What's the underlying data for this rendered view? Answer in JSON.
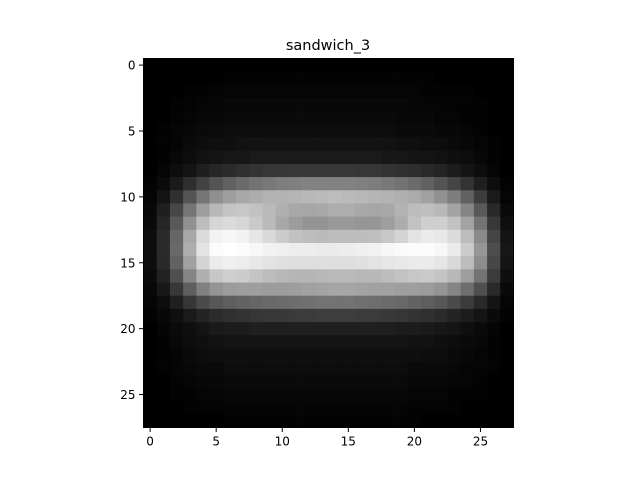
{
  "chart_data": {
    "type": "heatmap",
    "title": "sandwich_3",
    "xlabel": "",
    "ylabel": "",
    "colormap": "gray",
    "value_range": [
      0,
      1
    ],
    "rows": 28,
    "cols": 28,
    "xlim": [
      -0.5,
      27.5
    ],
    "ylim": [
      27.5,
      -0.5
    ],
    "x_ticks": [
      0,
      5,
      10,
      15,
      20,
      25
    ],
    "y_ticks": [
      0,
      5,
      10,
      15,
      20,
      25
    ],
    "x_tick_labels": [
      "0",
      "5",
      "10",
      "15",
      "20",
      "25"
    ],
    "y_tick_labels": [
      "0",
      "5",
      "10",
      "15",
      "20",
      "25"
    ],
    "grid": false,
    "values": [
      [
        0.0,
        0.0,
        0.0,
        0.0,
        0.0,
        0.0,
        0.0,
        0.0,
        0.0,
        0.0,
        0.0,
        0.0,
        0.0,
        0.0,
        0.0,
        0.0,
        0.0,
        0.0,
        0.0,
        0.0,
        0.0,
        0.0,
        0.0,
        0.0,
        0.0,
        0.0,
        0.0,
        0.0
      ],
      [
        0.0,
        0.0,
        0.0,
        0.0,
        0.0,
        0.0,
        0.01,
        0.01,
        0.01,
        0.01,
        0.01,
        0.01,
        0.01,
        0.01,
        0.01,
        0.01,
        0.01,
        0.01,
        0.01,
        0.01,
        0.01,
        0.01,
        0.0,
        0.0,
        0.0,
        0.0,
        0.0,
        0.0
      ],
      [
        0.0,
        0.0,
        0.0,
        0.01,
        0.01,
        0.01,
        0.02,
        0.02,
        0.02,
        0.02,
        0.02,
        0.02,
        0.02,
        0.02,
        0.02,
        0.02,
        0.02,
        0.02,
        0.02,
        0.02,
        0.02,
        0.01,
        0.01,
        0.01,
        0.01,
        0.0,
        0.0,
        0.0
      ],
      [
        0.0,
        0.0,
        0.01,
        0.01,
        0.02,
        0.02,
        0.03,
        0.03,
        0.03,
        0.03,
        0.03,
        0.03,
        0.03,
        0.03,
        0.03,
        0.03,
        0.03,
        0.03,
        0.03,
        0.03,
        0.02,
        0.02,
        0.02,
        0.01,
        0.01,
        0.01,
        0.0,
        0.0
      ],
      [
        0.0,
        0.0,
        0.01,
        0.02,
        0.03,
        0.03,
        0.04,
        0.04,
        0.04,
        0.04,
        0.04,
        0.04,
        0.04,
        0.04,
        0.04,
        0.04,
        0.04,
        0.04,
        0.04,
        0.03,
        0.03,
        0.03,
        0.02,
        0.02,
        0.01,
        0.01,
        0.0,
        0.0
      ],
      [
        0.0,
        0.01,
        0.02,
        0.03,
        0.04,
        0.04,
        0.05,
        0.05,
        0.05,
        0.05,
        0.05,
        0.05,
        0.05,
        0.05,
        0.05,
        0.05,
        0.05,
        0.05,
        0.05,
        0.04,
        0.04,
        0.04,
        0.03,
        0.03,
        0.02,
        0.01,
        0.0,
        0.0
      ],
      [
        0.0,
        0.01,
        0.02,
        0.04,
        0.05,
        0.06,
        0.06,
        0.07,
        0.07,
        0.07,
        0.07,
        0.07,
        0.07,
        0.07,
        0.07,
        0.07,
        0.07,
        0.07,
        0.07,
        0.06,
        0.06,
        0.05,
        0.05,
        0.04,
        0.03,
        0.02,
        0.01,
        0.0
      ],
      [
        0.0,
        0.01,
        0.03,
        0.05,
        0.07,
        0.08,
        0.09,
        0.09,
        0.1,
        0.1,
        0.1,
        0.1,
        0.1,
        0.1,
        0.1,
        0.1,
        0.1,
        0.1,
        0.09,
        0.09,
        0.08,
        0.08,
        0.07,
        0.06,
        0.05,
        0.03,
        0.01,
        0.0
      ],
      [
        0.0,
        0.02,
        0.05,
        0.08,
        0.12,
        0.15,
        0.17,
        0.19,
        0.2,
        0.21,
        0.21,
        0.22,
        0.22,
        0.22,
        0.22,
        0.22,
        0.21,
        0.21,
        0.2,
        0.19,
        0.18,
        0.16,
        0.14,
        0.11,
        0.08,
        0.05,
        0.02,
        0.0
      ],
      [
        0.01,
        0.04,
        0.1,
        0.18,
        0.26,
        0.33,
        0.38,
        0.42,
        0.45,
        0.47,
        0.49,
        0.5,
        0.51,
        0.51,
        0.51,
        0.51,
        0.5,
        0.49,
        0.47,
        0.45,
        0.42,
        0.38,
        0.33,
        0.27,
        0.2,
        0.12,
        0.05,
        0.01
      ],
      [
        0.02,
        0.08,
        0.19,
        0.33,
        0.46,
        0.56,
        0.62,
        0.66,
        0.68,
        0.7,
        0.7,
        0.71,
        0.72,
        0.73,
        0.74,
        0.73,
        0.72,
        0.71,
        0.7,
        0.69,
        0.67,
        0.63,
        0.57,
        0.49,
        0.38,
        0.24,
        0.1,
        0.02
      ],
      [
        0.03,
        0.12,
        0.28,
        0.46,
        0.62,
        0.72,
        0.77,
        0.78,
        0.76,
        0.73,
        0.69,
        0.66,
        0.65,
        0.66,
        0.68,
        0.68,
        0.66,
        0.65,
        0.66,
        0.7,
        0.74,
        0.75,
        0.72,
        0.64,
        0.52,
        0.35,
        0.16,
        0.04
      ],
      [
        0.04,
        0.15,
        0.35,
        0.57,
        0.74,
        0.84,
        0.86,
        0.84,
        0.79,
        0.73,
        0.66,
        0.61,
        0.58,
        0.58,
        0.6,
        0.6,
        0.59,
        0.59,
        0.62,
        0.68,
        0.76,
        0.81,
        0.81,
        0.76,
        0.64,
        0.45,
        0.22,
        0.06
      ],
      [
        0.05,
        0.17,
        0.4,
        0.66,
        0.86,
        0.95,
        0.97,
        0.95,
        0.9,
        0.85,
        0.8,
        0.76,
        0.74,
        0.73,
        0.74,
        0.74,
        0.74,
        0.75,
        0.78,
        0.83,
        0.89,
        0.92,
        0.91,
        0.86,
        0.74,
        0.54,
        0.27,
        0.08
      ],
      [
        0.05,
        0.17,
        0.41,
        0.68,
        0.89,
        0.99,
        1.0,
        0.99,
        0.97,
        0.95,
        0.94,
        0.93,
        0.93,
        0.92,
        0.92,
        0.93,
        0.94,
        0.95,
        0.97,
        0.98,
        0.99,
        0.99,
        0.97,
        0.92,
        0.8,
        0.59,
        0.3,
        0.09
      ],
      [
        0.05,
        0.16,
        0.38,
        0.63,
        0.83,
        0.92,
        0.94,
        0.93,
        0.91,
        0.89,
        0.88,
        0.87,
        0.87,
        0.87,
        0.87,
        0.87,
        0.88,
        0.89,
        0.9,
        0.91,
        0.92,
        0.92,
        0.9,
        0.85,
        0.74,
        0.55,
        0.28,
        0.08
      ],
      [
        0.04,
        0.13,
        0.31,
        0.52,
        0.69,
        0.78,
        0.81,
        0.8,
        0.77,
        0.74,
        0.72,
        0.71,
        0.71,
        0.72,
        0.73,
        0.73,
        0.72,
        0.72,
        0.74,
        0.76,
        0.78,
        0.79,
        0.77,
        0.72,
        0.62,
        0.45,
        0.23,
        0.06
      ],
      [
        0.03,
        0.09,
        0.22,
        0.37,
        0.5,
        0.58,
        0.61,
        0.62,
        0.62,
        0.61,
        0.61,
        0.62,
        0.63,
        0.64,
        0.65,
        0.65,
        0.64,
        0.63,
        0.63,
        0.62,
        0.62,
        0.61,
        0.58,
        0.52,
        0.43,
        0.31,
        0.16,
        0.04
      ],
      [
        0.02,
        0.05,
        0.12,
        0.21,
        0.29,
        0.34,
        0.37,
        0.39,
        0.4,
        0.41,
        0.42,
        0.43,
        0.44,
        0.45,
        0.45,
        0.45,
        0.44,
        0.43,
        0.42,
        0.41,
        0.39,
        0.37,
        0.34,
        0.29,
        0.23,
        0.16,
        0.08,
        0.02
      ],
      [
        0.01,
        0.03,
        0.06,
        0.1,
        0.14,
        0.17,
        0.19,
        0.2,
        0.21,
        0.22,
        0.22,
        0.23,
        0.23,
        0.24,
        0.24,
        0.24,
        0.23,
        0.23,
        0.22,
        0.21,
        0.2,
        0.19,
        0.17,
        0.14,
        0.11,
        0.08,
        0.04,
        0.01
      ],
      [
        0.0,
        0.02,
        0.04,
        0.06,
        0.08,
        0.1,
        0.11,
        0.11,
        0.12,
        0.12,
        0.12,
        0.12,
        0.12,
        0.12,
        0.12,
        0.12,
        0.12,
        0.12,
        0.12,
        0.11,
        0.11,
        0.1,
        0.09,
        0.08,
        0.06,
        0.04,
        0.02,
        0.0
      ],
      [
        0.0,
        0.01,
        0.03,
        0.05,
        0.06,
        0.07,
        0.08,
        0.08,
        0.08,
        0.08,
        0.08,
        0.08,
        0.08,
        0.08,
        0.08,
        0.08,
        0.08,
        0.08,
        0.08,
        0.08,
        0.07,
        0.07,
        0.06,
        0.05,
        0.04,
        0.03,
        0.01,
        0.0
      ],
      [
        0.0,
        0.01,
        0.02,
        0.04,
        0.05,
        0.06,
        0.06,
        0.06,
        0.06,
        0.06,
        0.06,
        0.06,
        0.06,
        0.06,
        0.06,
        0.06,
        0.06,
        0.06,
        0.06,
        0.06,
        0.06,
        0.05,
        0.05,
        0.04,
        0.03,
        0.02,
        0.01,
        0.0
      ],
      [
        0.0,
        0.01,
        0.02,
        0.03,
        0.04,
        0.04,
        0.05,
        0.05,
        0.05,
        0.05,
        0.05,
        0.05,
        0.05,
        0.05,
        0.05,
        0.05,
        0.05,
        0.05,
        0.05,
        0.05,
        0.04,
        0.04,
        0.04,
        0.03,
        0.02,
        0.02,
        0.01,
        0.0
      ],
      [
        0.0,
        0.0,
        0.01,
        0.02,
        0.03,
        0.03,
        0.04,
        0.04,
        0.04,
        0.04,
        0.04,
        0.04,
        0.04,
        0.04,
        0.04,
        0.04,
        0.04,
        0.04,
        0.04,
        0.04,
        0.03,
        0.03,
        0.03,
        0.02,
        0.02,
        0.01,
        0.0,
        0.0
      ],
      [
        0.0,
        0.0,
        0.01,
        0.01,
        0.02,
        0.02,
        0.03,
        0.03,
        0.03,
        0.03,
        0.03,
        0.03,
        0.03,
        0.03,
        0.03,
        0.03,
        0.03,
        0.03,
        0.03,
        0.03,
        0.02,
        0.02,
        0.02,
        0.01,
        0.01,
        0.01,
        0.0,
        0.0
      ],
      [
        0.0,
        0.0,
        0.0,
        0.01,
        0.01,
        0.01,
        0.02,
        0.02,
        0.02,
        0.02,
        0.02,
        0.02,
        0.02,
        0.02,
        0.02,
        0.02,
        0.02,
        0.02,
        0.02,
        0.02,
        0.01,
        0.01,
        0.01,
        0.01,
        0.0,
        0.0,
        0.0,
        0.0
      ],
      [
        0.0,
        0.0,
        0.0,
        0.0,
        0.0,
        0.0,
        0.01,
        0.01,
        0.01,
        0.01,
        0.01,
        0.01,
        0.01,
        0.01,
        0.01,
        0.01,
        0.01,
        0.01,
        0.01,
        0.01,
        0.01,
        0.0,
        0.0,
        0.0,
        0.0,
        0.0,
        0.0,
        0.0
      ]
    ]
  }
}
